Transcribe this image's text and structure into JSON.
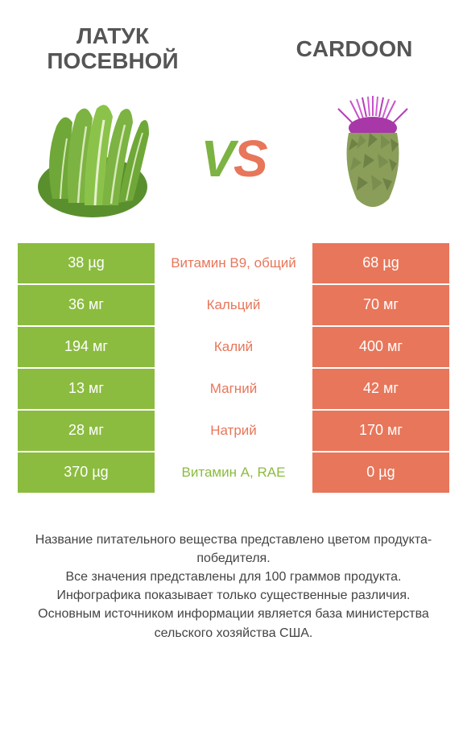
{
  "colors": {
    "green": "#8bbc3f",
    "orange": "#e8765a",
    "text_gray": "#555555",
    "footer_text": "#444444",
    "white": "#ffffff"
  },
  "header": {
    "left_title": "ЛАТУК ПОСЕВНОЙ",
    "right_title": "CARDOON",
    "vs_v": "V",
    "vs_s": "S"
  },
  "rows": [
    {
      "left": "38 µg",
      "label": "Витамин B9, общий",
      "right": "68 µg",
      "winner": "right"
    },
    {
      "left": "36 мг",
      "label": "Кальций",
      "right": "70 мг",
      "winner": "right"
    },
    {
      "left": "194 мг",
      "label": "Калий",
      "right": "400 мг",
      "winner": "right"
    },
    {
      "left": "13 мг",
      "label": "Магний",
      "right": "42 мг",
      "winner": "right"
    },
    {
      "left": "28 мг",
      "label": "Натрий",
      "right": "170 мг",
      "winner": "right"
    },
    {
      "left": "370 µg",
      "label": "Витамин A, RAE",
      "right": "0 µg",
      "winner": "left"
    }
  ],
  "footer": {
    "line1": "Название питательного вещества представлено цветом продукта-победителя.",
    "line2": "Все значения представлены для 100 граммов продукта.",
    "line3": "Инфографика показывает только существенные различия.",
    "line4": "Основным источником информации является база министерства сельского хозяйства США."
  }
}
